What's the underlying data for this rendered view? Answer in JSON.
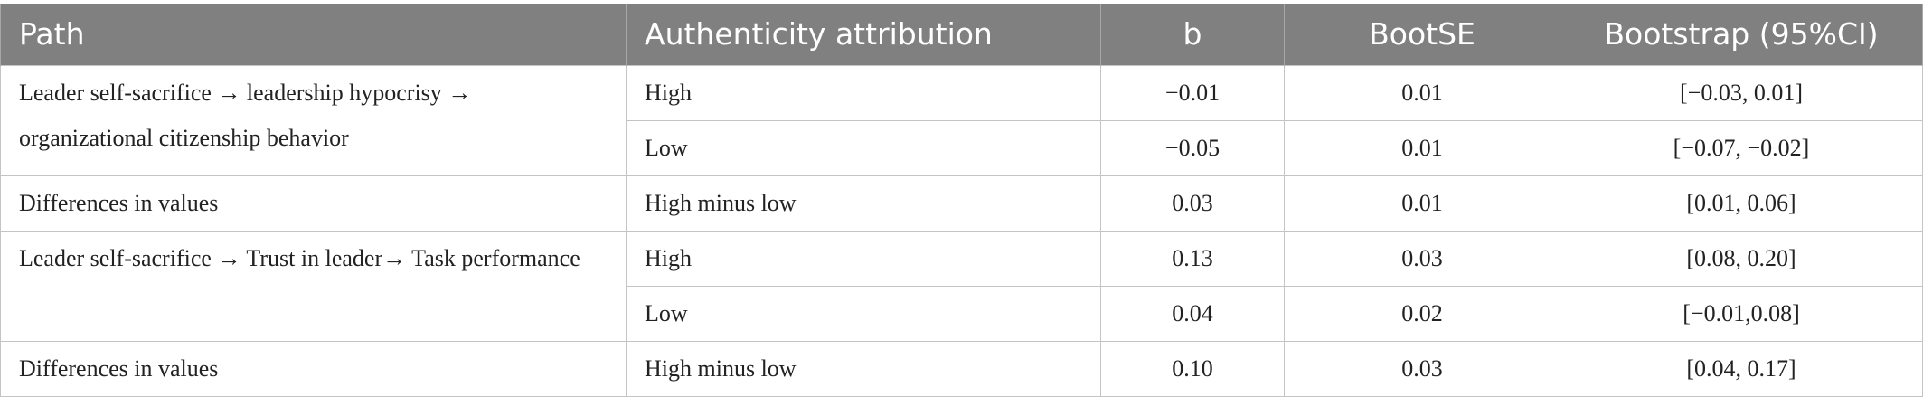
{
  "table": {
    "headers": [
      "Path",
      "Authenticity attribution",
      "b",
      "BootSE",
      "Bootstrap (95%CI)"
    ],
    "groups": [
      {
        "path": "Leader self-sacrifice → leadership hypocrisy → organizational citizenship behavior",
        "rows": [
          {
            "attribution": "High",
            "b": "−0.01",
            "bootse": "0.01",
            "ci": "[−0.03, 0.01]"
          },
          {
            "attribution": "Low",
            "b": "−0.05",
            "bootse": "0.01",
            "ci": "[−0.07, −0.02]"
          }
        ]
      },
      {
        "path": "Differences in values",
        "rows": [
          {
            "attribution": "High minus low",
            "b": "0.03",
            "bootse": "0.01",
            "ci": "[0.01, 0.06]"
          }
        ]
      },
      {
        "path": "Leader self-sacrifice → Trust in leader→ Task performance",
        "rows": [
          {
            "attribution": "High",
            "b": "0.13",
            "bootse": "0.03",
            "ci": "[0.08, 0.20]"
          },
          {
            "attribution": "Low",
            "b": "0.04",
            "bootse": "0.02",
            "ci": "[−0.01,0.08]"
          }
        ]
      },
      {
        "path": "Differences in values",
        "rows": [
          {
            "attribution": "High minus low",
            "b": "0.10",
            "bootse": "0.03",
            "ci": "[0.04, 0.17]"
          }
        ]
      }
    ]
  }
}
